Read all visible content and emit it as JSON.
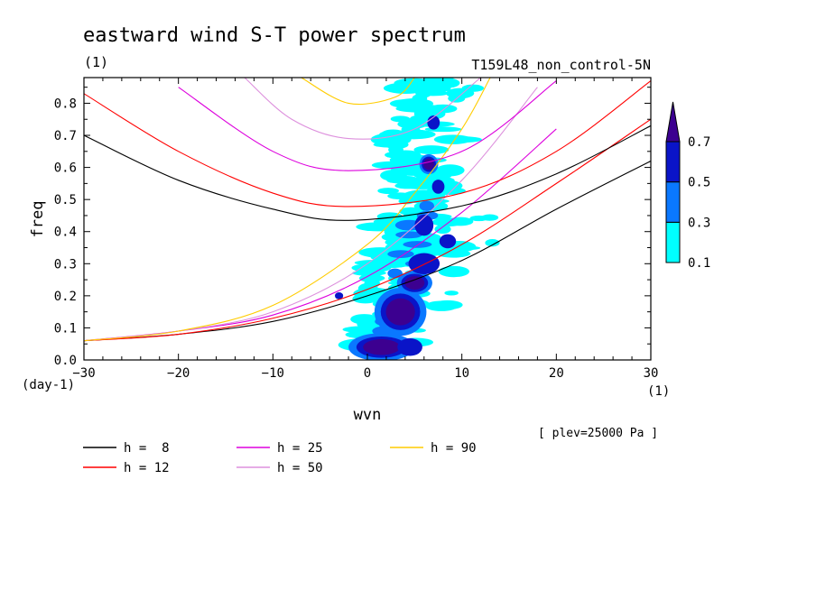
{
  "chart_data": {
    "type": "contour",
    "title": "eastward wind S-T power spectrum",
    "title_unit": "(1)",
    "experiment": "T159L48_non_control-5N",
    "xlabel": "wvn",
    "xunit": "(1)",
    "ylabel": "freq",
    "yunit": "(day-1)",
    "level_note": "[ plev=25000 Pa ]",
    "xlim": [
      -30,
      30
    ],
    "ylim": [
      0,
      0.88
    ],
    "xticks": [
      -30,
      -20,
      -10,
      0,
      10,
      20,
      30
    ],
    "yticks": [
      0.0,
      0.1,
      0.2,
      0.3,
      0.4,
      0.5,
      0.6,
      0.7,
      0.8
    ],
    "ytick_labels": [
      "0.0",
      "0.1",
      "0.2",
      "0.3",
      "0.4",
      "0.5",
      "0.6",
      "0.7",
      "0.8"
    ],
    "colorbar": {
      "levels": [
        0.1,
        0.3,
        0.5,
        0.7
      ],
      "colors": [
        "#00ffff",
        "#0a78ff",
        "#0a14c8",
        "#3c0090"
      ],
      "extend": "max"
    },
    "dispersion_curves": [
      {
        "label": "h =  8",
        "h": 8,
        "color": "#000000",
        "samples": [
          [
            -30,
            0.06
          ],
          [
            -20,
            0.08
          ],
          [
            -10,
            0.12
          ],
          [
            0,
            0.2
          ],
          [
            10,
            0.31
          ],
          [
            20,
            0.47
          ],
          [
            30,
            0.62
          ]
        ]
      },
      {
        "label": "h = 12",
        "h": 12,
        "color": "#ff0000",
        "samples": [
          [
            -30,
            0.06
          ],
          [
            -20,
            0.08
          ],
          [
            -10,
            0.13
          ],
          [
            0,
            0.22
          ],
          [
            10,
            0.36
          ],
          [
            20,
            0.55
          ],
          [
            30,
            0.75
          ]
        ]
      },
      {
        "label": "h = 25",
        "h": 25,
        "color": "#dd00dd",
        "samples": [
          [
            -30,
            0.06
          ],
          [
            -20,
            0.09
          ],
          [
            -10,
            0.14
          ],
          [
            0,
            0.26
          ],
          [
            10,
            0.46
          ],
          [
            20,
            0.72
          ]
        ]
      },
      {
        "label": "h = 50",
        "h": 50,
        "color": "#dd90dd",
        "samples": [
          [
            -30,
            0.06
          ],
          [
            -20,
            0.09
          ],
          [
            -10,
            0.15
          ],
          [
            0,
            0.3
          ],
          [
            10,
            0.56
          ],
          [
            18,
            0.85
          ]
        ]
      },
      {
        "label": "h = 90",
        "h": 90,
        "color": "#ffcc00",
        "samples": [
          [
            -30,
            0.06
          ],
          [
            -20,
            0.09
          ],
          [
            -10,
            0.17
          ],
          [
            0,
            0.36
          ],
          [
            5,
            0.52
          ],
          [
            10,
            0.72
          ],
          [
            13,
            0.88
          ]
        ]
      }
    ],
    "inertia_gravity_curves": [
      {
        "h": 8,
        "color": "#000000",
        "samples": [
          [
            -30,
            0.7
          ],
          [
            -20,
            0.56
          ],
          [
            -10,
            0.47
          ],
          [
            -2,
            0.435
          ],
          [
            10,
            0.48
          ],
          [
            20,
            0.58
          ],
          [
            30,
            0.73
          ]
        ]
      },
      {
        "h": 12,
        "color": "#ff0000",
        "samples": [
          [
            -30,
            0.83
          ],
          [
            -20,
            0.65
          ],
          [
            -10,
            0.52
          ],
          [
            -2,
            0.478
          ],
          [
            10,
            0.52
          ],
          [
            20,
            0.65
          ],
          [
            30,
            0.87
          ]
        ]
      },
      {
        "h": 25,
        "color": "#dd00dd",
        "samples": [
          [
            -20,
            0.85
          ],
          [
            -10,
            0.65
          ],
          [
            -2,
            0.59
          ],
          [
            10,
            0.65
          ],
          [
            20,
            0.87
          ]
        ]
      },
      {
        "h": 50,
        "color": "#dd90dd",
        "samples": [
          [
            -13,
            0.88
          ],
          [
            -8,
            0.75
          ],
          [
            -2,
            0.69
          ],
          [
            5,
            0.72
          ],
          [
            12,
            0.88
          ]
        ]
      },
      {
        "h": 90,
        "color": "#ffcc00",
        "samples": [
          [
            -7,
            0.88
          ],
          [
            -2,
            0.8
          ],
          [
            3,
            0.82
          ],
          [
            5,
            0.88
          ]
        ]
      }
    ],
    "power_patches": [
      {
        "x": 1.5,
        "y": 0.04,
        "rx": 2.8,
        "ry": 0.035,
        "level": 3
      },
      {
        "x": 4.5,
        "y": 0.04,
        "rx": 1.2,
        "ry": 0.025,
        "level": 2
      },
      {
        "x": 3.5,
        "y": 0.15,
        "rx": 2.2,
        "ry": 0.06,
        "level": 3
      },
      {
        "x": 5.0,
        "y": 0.24,
        "rx": 1.5,
        "ry": 0.03,
        "level": 3
      },
      {
        "x": 6.0,
        "y": 0.3,
        "rx": 1.5,
        "ry": 0.03,
        "level": 2
      },
      {
        "x": 6.0,
        "y": 0.42,
        "rx": 0.9,
        "ry": 0.03,
        "level": 2
      },
      {
        "x": 6.5,
        "y": 0.61,
        "rx": 0.8,
        "ry": 0.025,
        "level": 3
      },
      {
        "x": 7.5,
        "y": 0.54,
        "rx": 0.6,
        "ry": 0.02,
        "level": 2
      },
      {
        "x": 7.0,
        "y": 0.74,
        "rx": 0.6,
        "ry": 0.02,
        "level": 2
      },
      {
        "x": 8.5,
        "y": 0.37,
        "rx": 0.8,
        "ry": 0.02,
        "level": 2
      },
      {
        "x": -3.0,
        "y": 0.2,
        "rx": 0.4,
        "ry": 0.01,
        "level": 2
      }
    ],
    "grid": false,
    "legend_position": "bottom-left"
  }
}
